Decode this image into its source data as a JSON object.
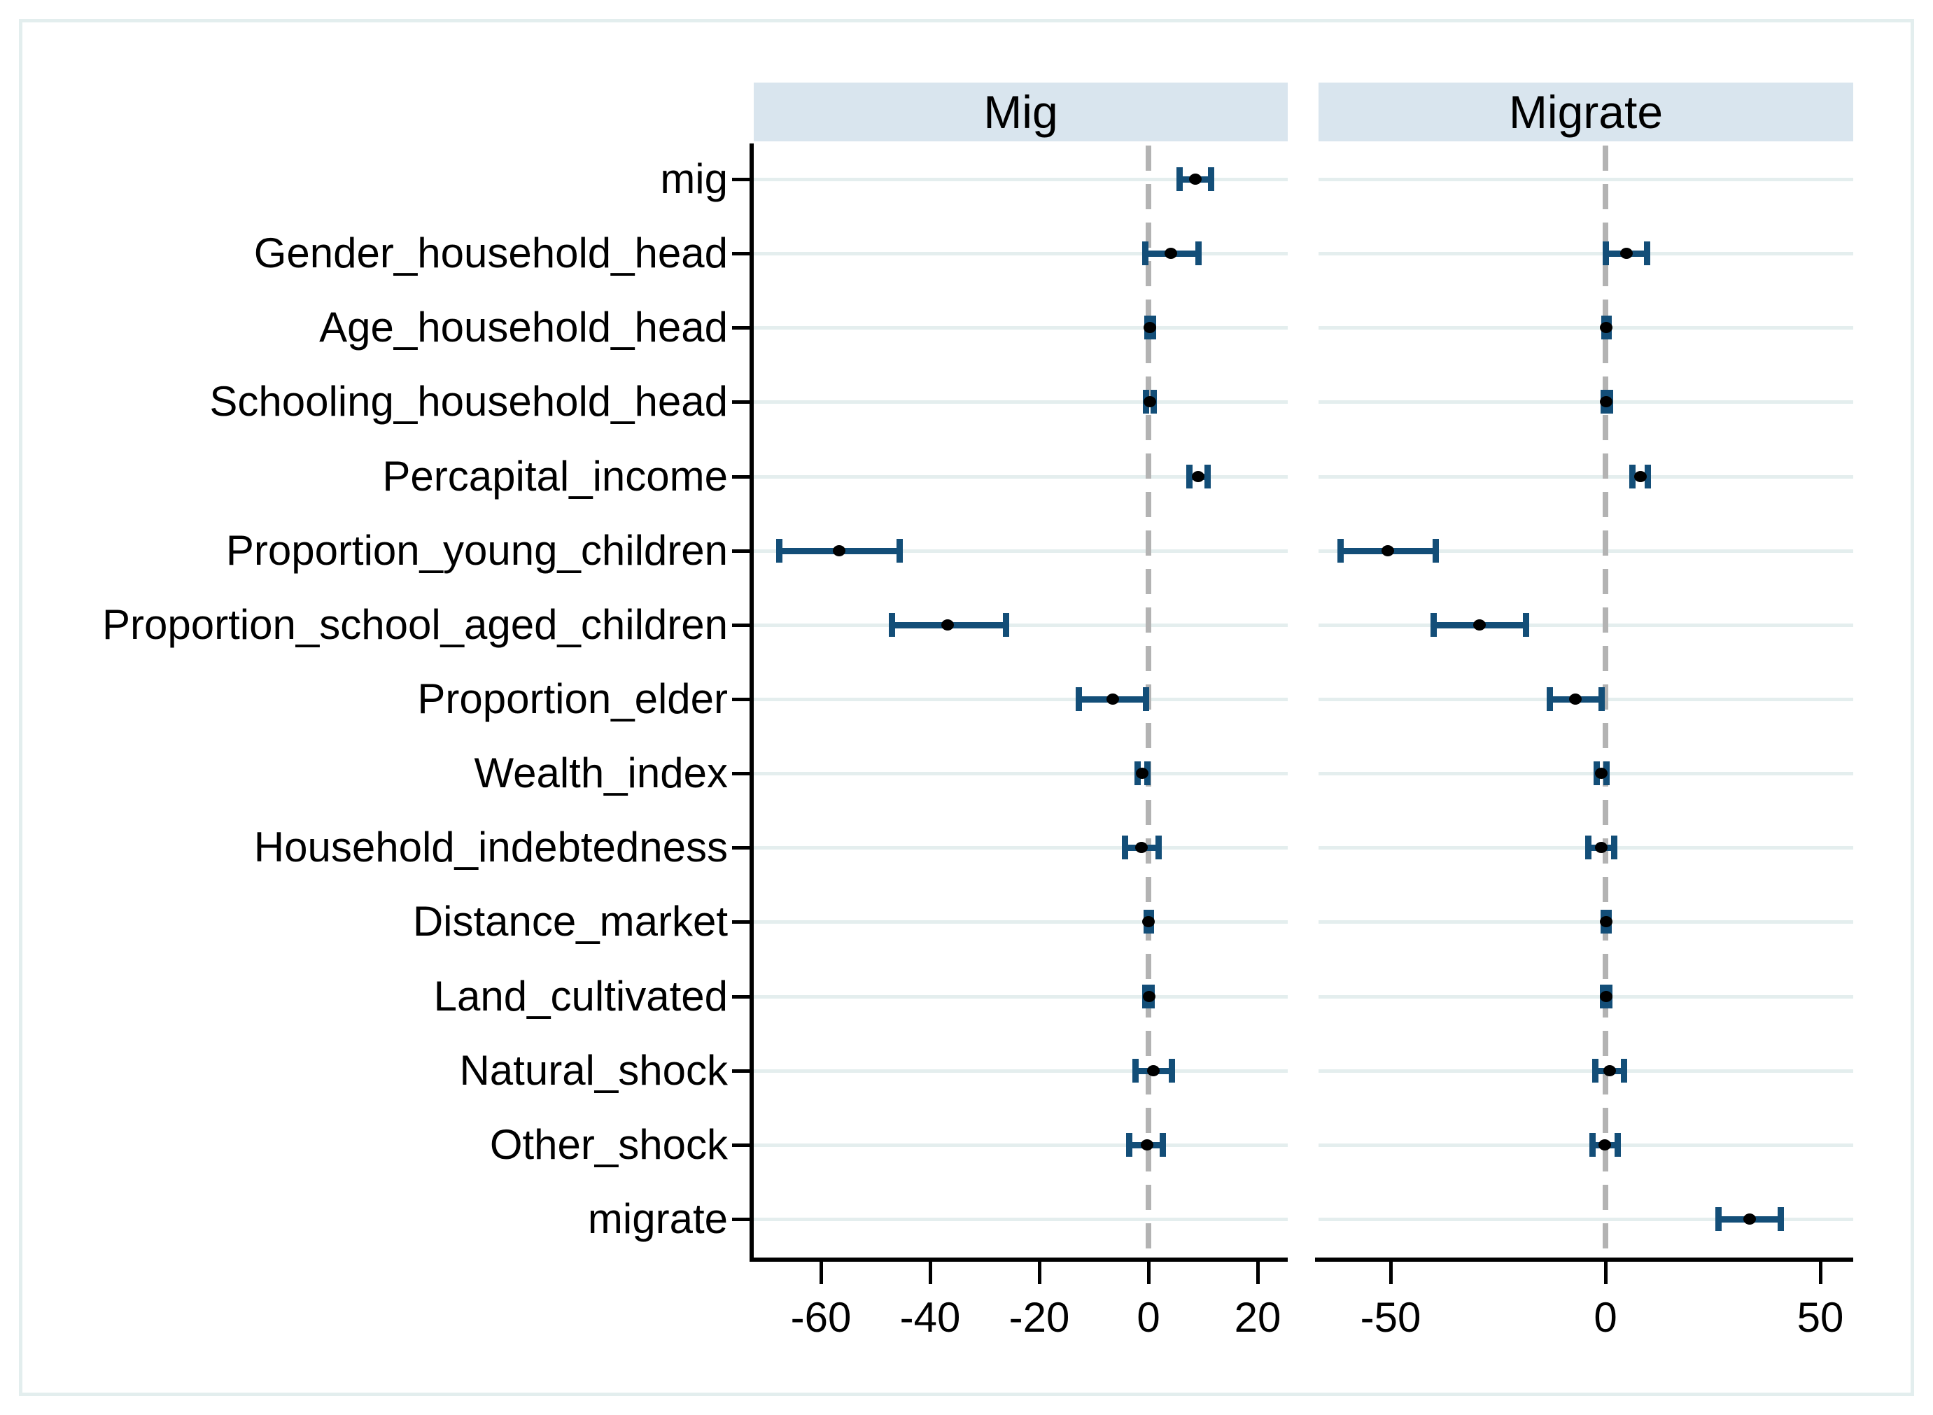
{
  "figure": {
    "background": "#ffffff",
    "colors": {
      "panel_header_band": "#d9e5ee",
      "gridline": "#e4eeee",
      "outer_border": "#e3eeee",
      "ci_bar": "#134e78",
      "point_marker": "#000000",
      "zero_line_dashed": "#b3b3b3",
      "axis": "#000000"
    }
  },
  "chart_data": {
    "type": "scatter",
    "subtype": "coefficient-plot-with-ci",
    "orientation": "horizontal",
    "grid": "on",
    "zero_reference_line": "dashed-gray",
    "categories": [
      "mig",
      "Gender_household_head",
      "Age_household_head",
      "Schooling_household_head",
      "Percapital_income",
      "Proportion_young_children",
      "Proportion_school_aged_children",
      "Proportion_elder",
      "Wealth_index",
      "Household_indebtedness",
      "Distance_market",
      "Land_cultivated",
      "Natural_shock",
      "Other_shock",
      "migrate"
    ],
    "panels": [
      {
        "title": "Mig",
        "xlim": [
          -72,
          25.5
        ],
        "xticks": [
          -60,
          -40,
          -20,
          0,
          20
        ],
        "xtick_labels": [
          "-60",
          "-40",
          "-20",
          "0",
          "20"
        ],
        "estimates": [
          8.6,
          4.1,
          0.2,
          0.2,
          9.1,
          -56.7,
          -36.8,
          -6.6,
          -1.2,
          -1.3,
          0.0,
          0.1,
          0.9,
          -0.3,
          null
        ],
        "ci_low": [
          5.6,
          -0.6,
          -0.3,
          -0.5,
          7.4,
          -67.7,
          -47.1,
          -12.8,
          -2.1,
          -4.4,
          -0.4,
          -0.6,
          -2.4,
          -3.6,
          null
        ],
        "ci_high": [
          11.4,
          9.1,
          0.8,
          0.9,
          10.8,
          -45.6,
          -26.2,
          -0.5,
          -0.3,
          1.8,
          0.4,
          0.5,
          4.2,
          2.6,
          null
        ]
      },
      {
        "title": "Migrate",
        "xlim": [
          -66.8,
          57.7
        ],
        "xticks": [
          -50,
          0,
          50
        ],
        "xtick_labels": [
          "-50",
          "0",
          "50"
        ],
        "estimates": [
          null,
          4.9,
          0.2,
          0.2,
          8.1,
          -50.7,
          -29.3,
          -7.0,
          -1.0,
          -0.9,
          0.1,
          0.1,
          0.9,
          -0.1,
          33.5
        ],
        "ci_low": [
          null,
          0.0,
          -0.4,
          -0.5,
          6.2,
          -61.7,
          -40.1,
          -13.0,
          -2.1,
          -4.1,
          -0.5,
          -0.6,
          -2.4,
          -3.1,
          26.2
        ],
        "ci_high": [
          null,
          9.6,
          0.7,
          1.0,
          9.8,
          -39.6,
          -18.6,
          -1.0,
          0.1,
          2.0,
          0.7,
          0.8,
          4.2,
          2.8,
          40.7
        ]
      }
    ]
  }
}
